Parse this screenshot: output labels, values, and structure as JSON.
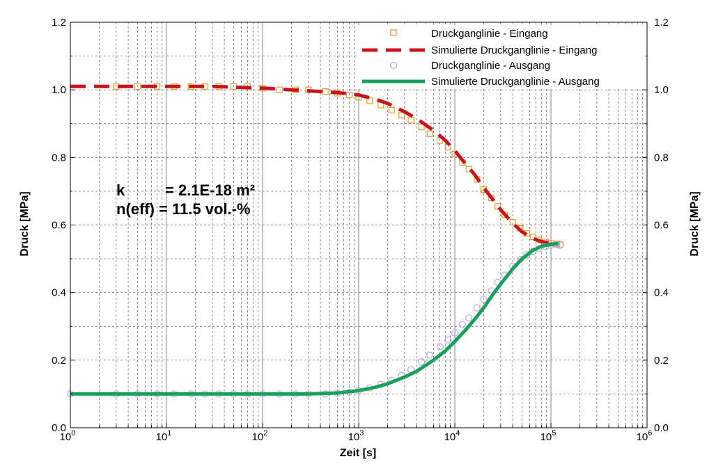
{
  "chart_data": {
    "type": "scatter",
    "xscale": "log",
    "xlim": [
      1,
      1000000
    ],
    "ylim": [
      0,
      1.2
    ],
    "yticks": [
      0.0,
      0.2,
      0.4,
      0.6,
      0.8,
      1.0,
      1.2
    ],
    "ytick_labels": [
      "0.0",
      "0.2",
      "0.4",
      "0.6",
      "0.8",
      "1.0",
      "1.2"
    ],
    "xtick_bases": [
      "10",
      "10",
      "10",
      "10",
      "10",
      "10",
      "10"
    ],
    "xtick_exponents": [
      "0",
      "1",
      "2",
      "3",
      "4",
      "5",
      "6"
    ],
    "xlabel": "Zeit [s]",
    "ylabel_left": "Druck [MPa]",
    "ylabel_right": "Druck [MPa]",
    "grid": true,
    "legend_position": "top-right",
    "annotation": {
      "line1_label": "k",
      "line1_value": "= 2.1E-18 m²",
      "line2": "n(eff) = 11.5 vol.-%"
    },
    "series": [
      {
        "name": "Druckganglinie - Eingang",
        "kind": "markers",
        "marker": "square",
        "color": "#e8941a",
        "x": [
          3,
          5,
          8,
          12,
          18,
          25,
          35,
          50,
          70,
          100,
          150,
          220,
          300,
          450,
          600,
          800,
          1000,
          1300,
          1700,
          2200,
          2800,
          3500,
          4500,
          5500,
          7000,
          8500,
          10000,
          12000,
          14000,
          17000,
          20000,
          24000,
          28000,
          33000,
          40000,
          48000,
          56000,
          65000,
          75000,
          88000,
          100000,
          115000,
          125000
        ],
        "y": [
          1.01,
          1.01,
          1.01,
          1.01,
          1.01,
          1.01,
          1.01,
          1.01,
          1.01,
          1.005,
          1.0,
          1.0,
          1.0,
          0.995,
          0.99,
          0.985,
          0.978,
          0.968,
          0.955,
          0.94,
          0.925,
          0.91,
          0.89,
          0.87,
          0.85,
          0.83,
          0.81,
          0.785,
          0.765,
          0.735,
          0.705,
          0.68,
          0.655,
          0.63,
          0.608,
          0.59,
          0.575,
          0.565,
          0.556,
          0.55,
          0.546,
          0.544,
          0.543
        ]
      },
      {
        "name": "Simulierte Druckganglinie - Eingang",
        "kind": "line",
        "dash": "dashed",
        "color": "#c8151b",
        "x": [
          1,
          3,
          10,
          30,
          100,
          200,
          400,
          700,
          1000,
          1500,
          2000,
          3000,
          4000,
          6000,
          8000,
          10000,
          13000,
          16000,
          20000,
          25000,
          30000,
          40000,
          50000,
          65000,
          80000,
          100000,
          120000
        ],
        "y": [
          1.01,
          1.01,
          1.01,
          1.01,
          1.005,
          1.0,
          0.995,
          0.99,
          0.985,
          0.972,
          0.96,
          0.935,
          0.915,
          0.88,
          0.85,
          0.82,
          0.78,
          0.75,
          0.71,
          0.675,
          0.645,
          0.605,
          0.58,
          0.56,
          0.551,
          0.546,
          0.543
        ]
      },
      {
        "name": "Druckganglinie - Ausgang",
        "kind": "markers",
        "marker": "circle",
        "color": "#a6a6e8",
        "x": [
          1,
          3,
          5,
          8,
          12,
          18,
          25,
          35,
          50,
          70,
          100,
          150,
          220,
          300,
          450,
          600,
          800,
          1000,
          1300,
          1700,
          2200,
          2800,
          3500,
          4500,
          5500,
          7000,
          8500,
          10000,
          12000,
          14000,
          17000,
          20000,
          24000,
          28000,
          33000,
          40000,
          48000,
          56000,
          65000,
          75000,
          88000,
          100000,
          115000,
          125000
        ],
        "y": [
          0.1,
          0.1,
          0.1,
          0.1,
          0.1,
          0.1,
          0.1,
          0.1,
          0.1,
          0.1,
          0.1,
          0.1,
          0.1,
          0.1,
          0.1,
          0.102,
          0.105,
          0.11,
          0.118,
          0.128,
          0.14,
          0.155,
          0.172,
          0.195,
          0.215,
          0.24,
          0.26,
          0.28,
          0.305,
          0.325,
          0.355,
          0.38,
          0.405,
          0.43,
          0.452,
          0.478,
          0.498,
          0.512,
          0.522,
          0.53,
          0.536,
          0.54,
          0.542,
          0.54
        ]
      },
      {
        "name": "Simulierte Druckganglinie - Ausgang",
        "kind": "line",
        "dash": "solid",
        "color": "#1aa05a",
        "x": [
          1,
          10,
          100,
          300,
          600,
          1000,
          1500,
          2000,
          3000,
          4000,
          6000,
          8000,
          10000,
          13000,
          16000,
          20000,
          25000,
          30000,
          40000,
          50000,
          65000,
          80000,
          100000,
          120000
        ],
        "y": [
          0.1,
          0.1,
          0.1,
          0.1,
          0.103,
          0.11,
          0.12,
          0.13,
          0.15,
          0.167,
          0.2,
          0.228,
          0.255,
          0.29,
          0.32,
          0.355,
          0.395,
          0.425,
          0.47,
          0.5,
          0.525,
          0.537,
          0.543,
          0.545
        ]
      }
    ]
  }
}
